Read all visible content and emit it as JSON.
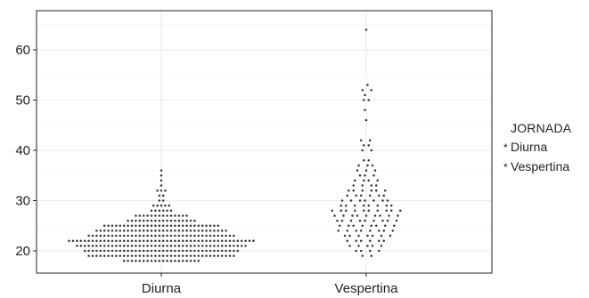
{
  "chart_data": {
    "type": "scatter",
    "subtype": "beeswarm",
    "categories": [
      "Diurna",
      "Vespertina"
    ],
    "ylim": [
      17,
      66
    ],
    "yticks": [
      20,
      30,
      40,
      50,
      60
    ],
    "xlabel": "",
    "ylabel": "",
    "grid": true,
    "legend_position": "right",
    "legend": {
      "title": "JORNADA",
      "entries": [
        {
          "symbol": "*",
          "label": "Diurna"
        },
        {
          "symbol": "*",
          "label": "Vespertina"
        }
      ]
    },
    "series": [
      {
        "name": "Diurna",
        "distribution": [
          {
            "value": 18,
            "count": 20
          },
          {
            "value": 19,
            "count": 38
          },
          {
            "value": 20,
            "count": 40
          },
          {
            "value": 21,
            "count": 44
          },
          {
            "value": 22,
            "count": 48
          },
          {
            "value": 23,
            "count": 38
          },
          {
            "value": 24,
            "count": 34
          },
          {
            "value": 25,
            "count": 30
          },
          {
            "value": 26,
            "count": 18
          },
          {
            "value": 27,
            "count": 14
          },
          {
            "value": 28,
            "count": 6
          },
          {
            "value": 29,
            "count": 5
          },
          {
            "value": 30,
            "count": 2
          },
          {
            "value": 31,
            "count": 2
          },
          {
            "value": 32,
            "count": 3
          },
          {
            "value": 33,
            "count": 1
          },
          {
            "value": 34,
            "count": 1
          },
          {
            "value": 35,
            "count": 1
          },
          {
            "value": 36,
            "count": 1
          }
        ]
      },
      {
        "name": "Vespertina",
        "distribution": [
          {
            "value": 19,
            "count": 2
          },
          {
            "value": 20,
            "count": 4
          },
          {
            "value": 21,
            "count": 5
          },
          {
            "value": 22,
            "count": 6
          },
          {
            "value": 23,
            "count": 7
          },
          {
            "value": 24,
            "count": 8
          },
          {
            "value": 25,
            "count": 8
          },
          {
            "value": 26,
            "count": 9
          },
          {
            "value": 27,
            "count": 9
          },
          {
            "value": 28,
            "count": 10
          },
          {
            "value": 29,
            "count": 8
          },
          {
            "value": 30,
            "count": 7
          },
          {
            "value": 31,
            "count": 6
          },
          {
            "value": 32,
            "count": 6
          },
          {
            "value": 33,
            "count": 4
          },
          {
            "value": 34,
            "count": 4
          },
          {
            "value": 35,
            "count": 3
          },
          {
            "value": 36,
            "count": 3
          },
          {
            "value": 37,
            "count": 3
          },
          {
            "value": 38,
            "count": 2
          },
          {
            "value": 40,
            "count": 2
          },
          {
            "value": 41,
            "count": 2
          },
          {
            "value": 42,
            "count": 2
          },
          {
            "value": 46,
            "count": 1
          },
          {
            "value": 48,
            "count": 1
          },
          {
            "value": 50,
            "count": 2
          },
          {
            "value": 51,
            "count": 1
          },
          {
            "value": 52,
            "count": 2
          },
          {
            "value": 53,
            "count": 1
          },
          {
            "value": 64,
            "count": 1
          }
        ]
      }
    ]
  },
  "colors": {
    "points": "#333333",
    "grid_major": "#e3e3e3",
    "grid_minor": "#f0f0f0",
    "panel_border": "#222222",
    "text": "#222222"
  }
}
